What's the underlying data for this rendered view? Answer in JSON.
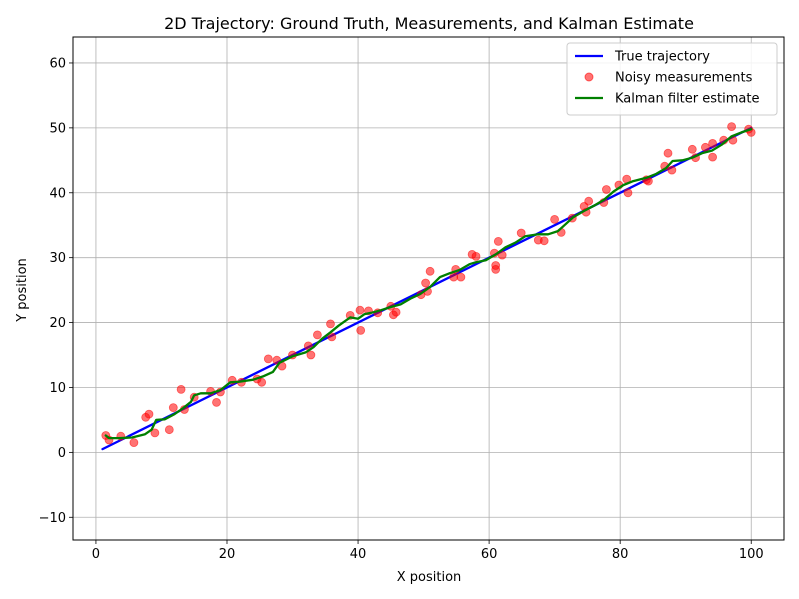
{
  "chart_data": {
    "type": "line",
    "title": "2D Trajectory: Ground Truth, Measurements, and Kalman Estimate",
    "xlabel": "X position",
    "ylabel": "Y position",
    "xlim": [
      -3.5,
      105
    ],
    "ylim": [
      -13.5,
      64
    ],
    "xticks": [
      0,
      20,
      40,
      60,
      80,
      100
    ],
    "yticks": [
      -10,
      0,
      10,
      20,
      30,
      40,
      50,
      60
    ],
    "grid": true,
    "legend_position": "top-right",
    "colors": {
      "true_trajectory": "#0000ff",
      "measurements": "#ff0000",
      "kalman": "#008000",
      "grid": "#b0b0b0"
    },
    "series": [
      {
        "name": "True trajectory",
        "kind": "line",
        "points": [
          [
            1,
            0.5
          ],
          [
            100,
            50
          ]
        ]
      },
      {
        "name": "Noisy measurements",
        "kind": "scatter",
        "points": [
          [
            1.5,
            2.6
          ],
          [
            2,
            1.9
          ],
          [
            3.8,
            2.5
          ],
          [
            5.8,
            1.5
          ],
          [
            7.6,
            5.4
          ],
          [
            8.1,
            5.9
          ],
          [
            9,
            3.0
          ],
          [
            11.2,
            3.5
          ],
          [
            11.8,
            6.9
          ],
          [
            13,
            9.7
          ],
          [
            13.5,
            6.6
          ],
          [
            15,
            8.5
          ],
          [
            17.5,
            9.4
          ],
          [
            18.4,
            7.7
          ],
          [
            19,
            9.3
          ],
          [
            20.8,
            11.1
          ],
          [
            22.2,
            10.8
          ],
          [
            24.6,
            11.3
          ],
          [
            25.3,
            10.8
          ],
          [
            26.3,
            14.4
          ],
          [
            27.6,
            14.2
          ],
          [
            28.4,
            13.3
          ],
          [
            30,
            15.0
          ],
          [
            32.4,
            16.4
          ],
          [
            32.8,
            15.0
          ],
          [
            33.8,
            18.1
          ],
          [
            35.8,
            19.8
          ],
          [
            36,
            17.8
          ],
          [
            38.8,
            21.1
          ],
          [
            40.4,
            18.8
          ],
          [
            40.3,
            21.9
          ],
          [
            41.6,
            21.8
          ],
          [
            43,
            21.5
          ],
          [
            45,
            22.5
          ],
          [
            45.4,
            21.2
          ],
          [
            45.8,
            21.6
          ],
          [
            49.6,
            24.3
          ],
          [
            50.3,
            26.1
          ],
          [
            50.6,
            24.8
          ],
          [
            51,
            27.9
          ],
          [
            54.6,
            27.0
          ],
          [
            54.9,
            28.2
          ],
          [
            55.7,
            27.0
          ],
          [
            57.4,
            30.5
          ],
          [
            58,
            30.2
          ],
          [
            60.8,
            30.7
          ],
          [
            61,
            28.8
          ],
          [
            61,
            28.2
          ],
          [
            61.4,
            32.5
          ],
          [
            62,
            30.4
          ],
          [
            64.9,
            33.8
          ],
          [
            67.5,
            32.7
          ],
          [
            68.4,
            32.6
          ],
          [
            70,
            35.9
          ],
          [
            71,
            33.9
          ],
          [
            72.7,
            36.1
          ],
          [
            74.5,
            37.9
          ],
          [
            74.8,
            37.0
          ],
          [
            75.2,
            38.7
          ],
          [
            77.5,
            38.5
          ],
          [
            77.9,
            40.5
          ],
          [
            79.8,
            41.2
          ],
          [
            81,
            42.1
          ],
          [
            81.2,
            40.0
          ],
          [
            84,
            42.0
          ],
          [
            84.3,
            41.8
          ],
          [
            86.8,
            44.1
          ],
          [
            87.3,
            46.1
          ],
          [
            87.9,
            43.5
          ],
          [
            91,
            46.7
          ],
          [
            91.5,
            45.4
          ],
          [
            93,
            47.0
          ],
          [
            94.1,
            45.5
          ],
          [
            94.1,
            47.6
          ],
          [
            95.8,
            48.1
          ],
          [
            97.2,
            48.1
          ],
          [
            97,
            50.2
          ],
          [
            99.6,
            49.8
          ],
          [
            100,
            49.3
          ]
        ]
      },
      {
        "name": "Kalman filter estimate",
        "kind": "line",
        "points": [
          [
            1.5,
            2.6
          ],
          [
            2,
            2.2
          ],
          [
            3.5,
            2.2
          ],
          [
            5.5,
            2.3
          ],
          [
            7.5,
            2.8
          ],
          [
            8.5,
            3.5
          ],
          [
            9.2,
            5.0
          ],
          [
            10.5,
            5.1
          ],
          [
            12,
            5.9
          ],
          [
            13.3,
            6.8
          ],
          [
            14.5,
            7.8
          ],
          [
            15,
            8.8
          ],
          [
            16,
            9.1
          ],
          [
            17.5,
            9.1
          ],
          [
            19,
            9.6
          ],
          [
            20.5,
            10.8
          ],
          [
            22,
            10.9
          ],
          [
            24,
            11.2
          ],
          [
            25.5,
            11.7
          ],
          [
            27,
            12.4
          ],
          [
            28,
            13.8
          ],
          [
            30,
            14.8
          ],
          [
            32,
            15.4
          ],
          [
            33.2,
            16.2
          ],
          [
            34.5,
            17.5
          ],
          [
            35.8,
            18.5
          ],
          [
            37,
            19.5
          ],
          [
            38.8,
            20.8
          ],
          [
            40,
            20.6
          ],
          [
            41,
            21.3
          ],
          [
            42,
            21.5
          ],
          [
            43.5,
            21.9
          ],
          [
            45,
            22.4
          ],
          [
            46.5,
            22.8
          ],
          [
            48,
            23.7
          ],
          [
            49.5,
            24.4
          ],
          [
            51,
            25.5
          ],
          [
            52.5,
            27.0
          ],
          [
            54,
            27.6
          ],
          [
            55.5,
            28.1
          ],
          [
            57,
            29.0
          ],
          [
            58,
            29.3
          ],
          [
            59.5,
            29.6
          ],
          [
            61,
            30.5
          ],
          [
            62.5,
            31.6
          ],
          [
            64,
            32.3
          ],
          [
            65.5,
            33.3
          ],
          [
            67.5,
            33.6
          ],
          [
            69,
            33.6
          ],
          [
            70.5,
            34.1
          ],
          [
            71.5,
            35.0
          ],
          [
            72.8,
            36.2
          ],
          [
            74.5,
            37.2
          ],
          [
            76,
            38.0
          ],
          [
            77.5,
            38.9
          ],
          [
            79,
            40.2
          ],
          [
            80.5,
            41.2
          ],
          [
            82,
            41.8
          ],
          [
            84,
            42.3
          ],
          [
            85.5,
            42.9
          ],
          [
            87,
            43.8
          ],
          [
            88,
            44.9
          ],
          [
            89.5,
            45.0
          ],
          [
            91,
            45.4
          ],
          [
            92.5,
            46.1
          ],
          [
            94,
            46.5
          ],
          [
            95.5,
            47.4
          ],
          [
            97,
            48.7
          ],
          [
            98.5,
            49.3
          ],
          [
            100,
            49.8
          ]
        ]
      }
    ]
  }
}
